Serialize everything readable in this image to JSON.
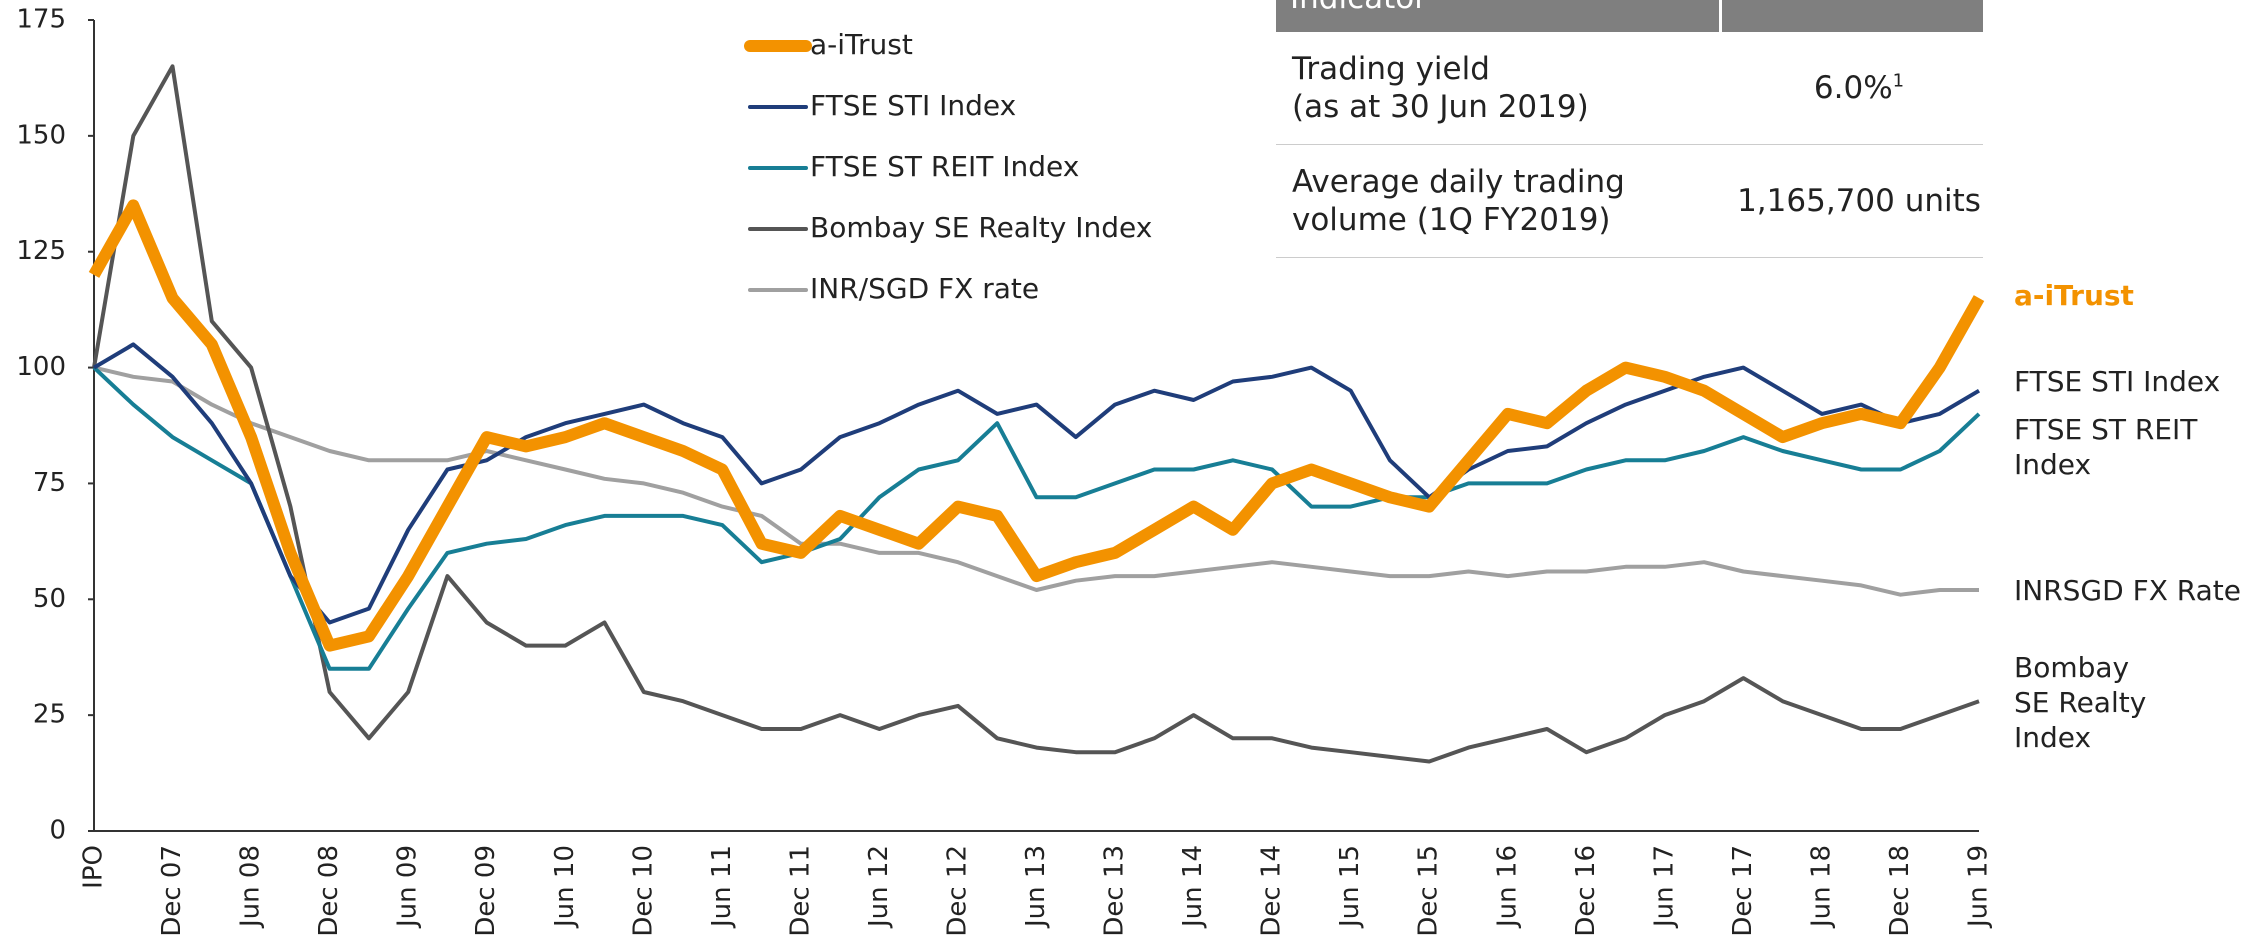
{
  "chart_data": {
    "type": "line",
    "categories": [
      "IPO",
      null,
      "Dec 07",
      null,
      "Jun 08",
      null,
      "Dec 08",
      null,
      "Jun 09",
      null,
      "Dec 09",
      null,
      "Jun 10",
      null,
      "Dec 10",
      null,
      "Jun 11",
      null,
      "Dec 11",
      null,
      "Jun 12",
      null,
      "Dec 12",
      null,
      "Jun 13",
      null,
      "Dec 13",
      null,
      "Jun 14",
      null,
      "Dec 14",
      null,
      "Jun 15",
      null,
      "Dec 15",
      null,
      "Jun 16",
      null,
      "Dec 16",
      null,
      "Jun 17",
      null,
      "Dec 17",
      null,
      "Jun 18",
      null,
      "Dec 18",
      null,
      "Jun 19"
    ],
    "series": [
      {
        "name": "a-iTrust",
        "color": "#f39200",
        "values": [
          120,
          135,
          115,
          105,
          85,
          60,
          40,
          42,
          55,
          70,
          85,
          83,
          85,
          88,
          85,
          82,
          78,
          62,
          60,
          68,
          65,
          62,
          70,
          68,
          55,
          58,
          60,
          65,
          70,
          65,
          75,
          78,
          75,
          72,
          70,
          80,
          90,
          88,
          95,
          100,
          98,
          95,
          90,
          85,
          88,
          90,
          88,
          100,
          115
        ]
      },
      {
        "name": "FTSE STI Index",
        "color": "#1f3d7a",
        "values": [
          100,
          105,
          98,
          88,
          75,
          55,
          45,
          48,
          65,
          78,
          80,
          85,
          88,
          90,
          92,
          88,
          85,
          75,
          78,
          85,
          88,
          92,
          95,
          90,
          92,
          85,
          92,
          95,
          93,
          97,
          98,
          100,
          95,
          80,
          72,
          78,
          82,
          83,
          88,
          92,
          95,
          98,
          100,
          95,
          90,
          92,
          88,
          90,
          95
        ]
      },
      {
        "name": "FTSE ST REIT Index",
        "color": "#177e95",
        "values": [
          100,
          92,
          85,
          80,
          75,
          55,
          35,
          35,
          48,
          60,
          62,
          63,
          66,
          68,
          68,
          68,
          66,
          58,
          60,
          63,
          72,
          78,
          80,
          88,
          72,
          72,
          75,
          78,
          78,
          80,
          78,
          70,
          70,
          72,
          72,
          75,
          75,
          75,
          78,
          80,
          80,
          82,
          85,
          82,
          80,
          78,
          78,
          82,
          90
        ]
      },
      {
        "name": "Bombay SE Realty Index",
        "color": "#555555",
        "values": [
          100,
          150,
          165,
          110,
          100,
          70,
          30,
          20,
          30,
          55,
          45,
          40,
          40,
          45,
          30,
          28,
          25,
          22,
          22,
          25,
          22,
          25,
          27,
          20,
          18,
          17,
          17,
          20,
          25,
          20,
          20,
          18,
          17,
          16,
          15,
          18,
          20,
          22,
          17,
          20,
          25,
          28,
          33,
          28,
          25,
          22,
          22,
          25,
          28
        ]
      },
      {
        "name": "INR/SGD FX rate",
        "color": "#a0a0a0",
        "values": [
          100,
          98,
          97,
          92,
          88,
          85,
          82,
          80,
          80,
          80,
          82,
          80,
          78,
          76,
          75,
          73,
          70,
          68,
          62,
          62,
          60,
          60,
          58,
          55,
          52,
          54,
          55,
          55,
          56,
          57,
          58,
          57,
          56,
          55,
          55,
          56,
          55,
          56,
          56,
          57,
          57,
          58,
          56,
          55,
          54,
          53,
          51,
          52,
          52
        ]
      }
    ],
    "ylim": [
      0,
      175
    ],
    "yticks": [
      0,
      25,
      50,
      75,
      100,
      125,
      150,
      175
    ],
    "annotations": [
      {
        "text": "a-iTrust",
        "color": "#f39200"
      },
      {
        "text": "FTSE STI Index",
        "color": "#222222"
      },
      {
        "text": "FTSE ST REIT Index",
        "color": "#222222"
      },
      {
        "text": "INRSGD FX Rate",
        "color": "#222222"
      },
      {
        "text": "Bombay SE Realty Index",
        "color": "#222222"
      }
    ]
  },
  "table": {
    "header": [
      "Indicator"
    ],
    "rows": [
      {
        "label": [
          "Trading yield",
          "(as at 30 Jun 2019)"
        ],
        "value": "6.0%",
        "footnote": "1"
      },
      {
        "label": [
          "Average daily trading",
          "volume (1Q FY2019)"
        ],
        "value": "1,165,700 units"
      }
    ]
  }
}
